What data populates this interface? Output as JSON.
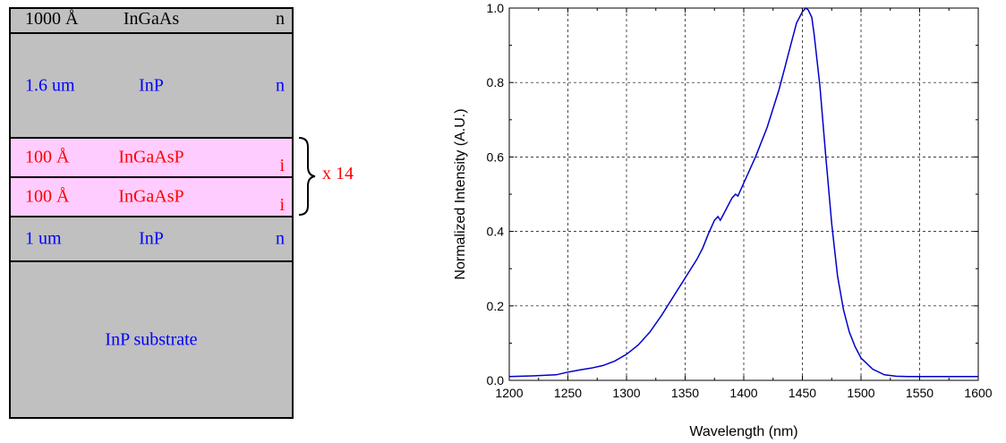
{
  "diagram": {
    "layers": [
      {
        "thickness": "1000 Å",
        "material": "InGaAs",
        "doping": "n"
      },
      {
        "thickness": "1.6 um",
        "material": "InP",
        "doping": "n"
      },
      {
        "thickness": "100 Å",
        "material": "InGaAsP",
        "doping": "i"
      },
      {
        "thickness": "100 Å",
        "material": "InGaAsP",
        "doping": "i"
      },
      {
        "thickness": "1 um",
        "material": "InP",
        "doping": "n"
      },
      {
        "material": "InP substrate"
      }
    ],
    "repeat_label": "x 14"
  },
  "chart_data": {
    "type": "line",
    "xlabel": "Wavelength (nm)",
    "ylabel": "Normalized Intensity (A.U.)",
    "xlim": [
      1200,
      1600
    ],
    "ylim": [
      0.0,
      1.0
    ],
    "xticks": [
      "1200",
      "1250",
      "1300",
      "1350",
      "1400",
      "1450",
      "1500",
      "1550",
      "1600"
    ],
    "yticks": [
      "0.0",
      "0.2",
      "0.4",
      "0.6",
      "0.8",
      "1.0"
    ],
    "grid": true,
    "line_color": "#0000cc",
    "series": [
      {
        "x": [
          1200,
          1220,
          1240,
          1250,
          1260,
          1270,
          1280,
          1290,
          1300,
          1310,
          1320,
          1330,
          1340,
          1350,
          1360,
          1365,
          1370,
          1375,
          1378,
          1380,
          1385,
          1390,
          1393,
          1395,
          1400,
          1410,
          1420,
          1430,
          1435,
          1440,
          1445,
          1450,
          1453,
          1455,
          1458,
          1460,
          1465,
          1470,
          1475,
          1480,
          1485,
          1490,
          1495,
          1500,
          1510,
          1520,
          1530,
          1540,
          1560,
          1580,
          1600
        ],
        "values": [
          0.01,
          0.012,
          0.015,
          0.022,
          0.028,
          0.033,
          0.04,
          0.052,
          0.07,
          0.095,
          0.13,
          0.175,
          0.225,
          0.275,
          0.325,
          0.355,
          0.395,
          0.43,
          0.44,
          0.43,
          0.46,
          0.49,
          0.5,
          0.495,
          0.53,
          0.6,
          0.68,
          0.78,
          0.84,
          0.9,
          0.96,
          0.99,
          1.0,
          0.995,
          0.975,
          0.93,
          0.79,
          0.6,
          0.42,
          0.28,
          0.19,
          0.13,
          0.09,
          0.06,
          0.03,
          0.015,
          0.011,
          0.01,
          0.01,
          0.01,
          0.01
        ]
      }
    ]
  }
}
